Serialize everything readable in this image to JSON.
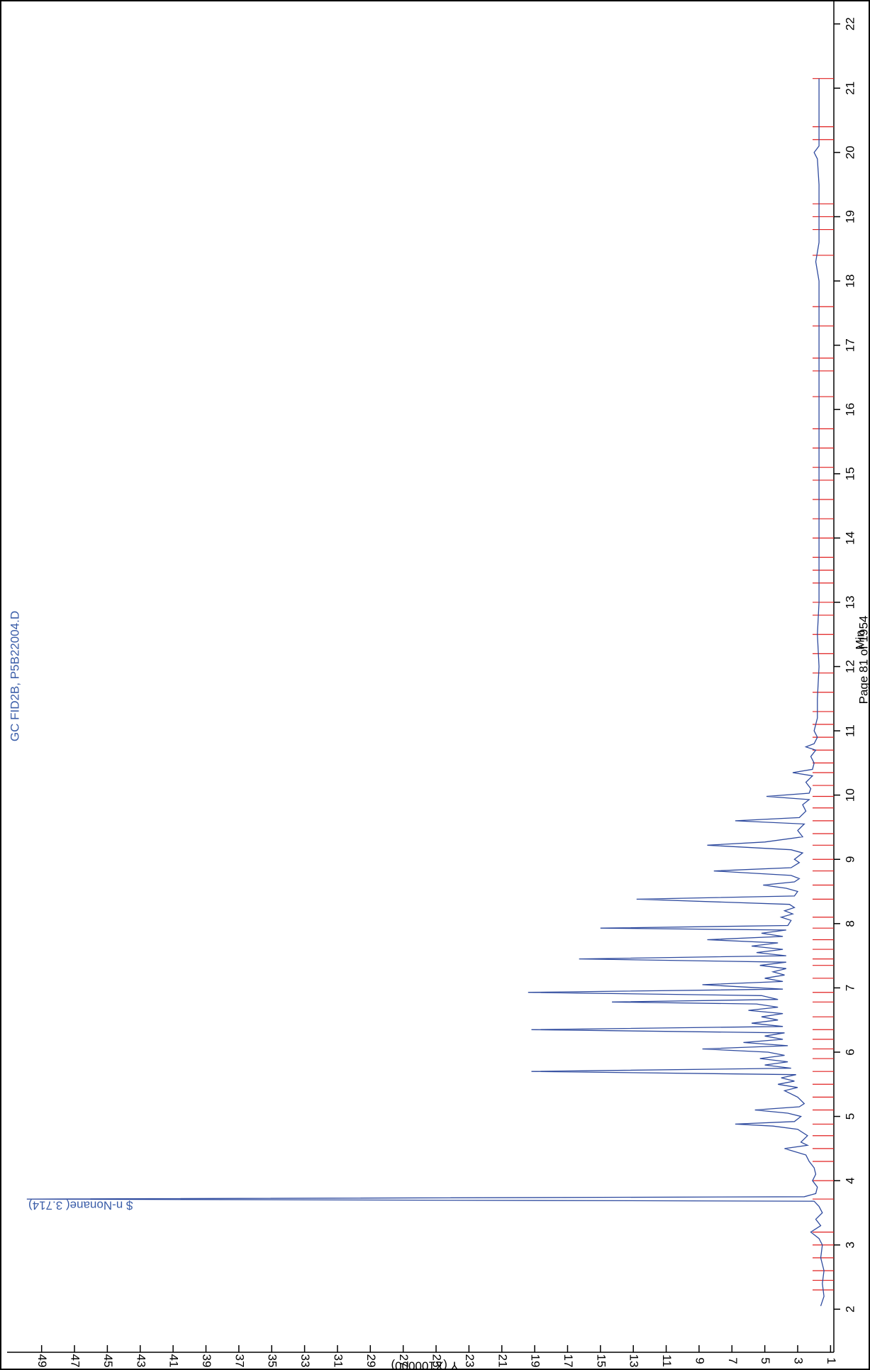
{
  "chart_data": {
    "type": "line",
    "title": "GC FID2B, P5B22004.D",
    "x_label": "Min",
    "y_label": "Y (X100000)",
    "footer": "Page 81 of 1954",
    "annotation": {
      "text": "$ n-Nonane( 3.714)",
      "x": 3.714
    },
    "x": [
      2.05,
      2.2,
      2.4,
      2.6,
      2.8,
      3.0,
      3.1,
      3.2,
      3.3,
      3.4,
      3.5,
      3.6,
      3.68,
      3.714,
      3.75,
      3.8,
      3.9,
      4.0,
      4.1,
      4.2,
      4.3,
      4.4,
      4.5,
      4.55,
      4.6,
      4.7,
      4.8,
      4.85,
      4.88,
      4.92,
      5.0,
      5.05,
      5.1,
      5.15,
      5.2,
      5.3,
      5.4,
      5.45,
      5.5,
      5.55,
      5.6,
      5.65,
      5.7,
      5.75,
      5.8,
      5.85,
      5.9,
      5.95,
      6.0,
      6.05,
      6.1,
      6.15,
      6.2,
      6.25,
      6.3,
      6.35,
      6.4,
      6.45,
      6.5,
      6.55,
      6.6,
      6.65,
      6.7,
      6.75,
      6.78,
      6.82,
      6.88,
      6.93,
      6.98,
      7.05,
      7.1,
      7.15,
      7.2,
      7.25,
      7.3,
      7.35,
      7.4,
      7.45,
      7.5,
      7.55,
      7.6,
      7.65,
      7.7,
      7.75,
      7.8,
      7.85,
      7.9,
      7.93,
      7.97,
      8.05,
      8.1,
      8.15,
      8.2,
      8.25,
      8.3,
      8.38,
      8.43,
      8.5,
      8.55,
      8.6,
      8.65,
      8.7,
      8.75,
      8.82,
      8.87,
      8.95,
      9.0,
      9.1,
      9.15,
      9.22,
      9.27,
      9.35,
      9.45,
      9.55,
      9.6,
      9.65,
      9.75,
      9.85,
      9.93,
      9.98,
      10.03,
      10.1,
      10.2,
      10.3,
      10.35,
      10.4,
      10.5,
      10.6,
      10.7,
      10.75,
      10.8,
      10.9,
      11.0,
      11.2,
      11.5,
      12.0,
      12.5,
      13.0,
      14.0,
      15.0,
      16.0,
      17.0,
      18.0,
      18.3,
      18.6,
      19.0,
      19.5,
      19.9,
      20.0,
      20.1,
      20.5,
      21.0,
      21.15
    ],
    "series": [
      {
        "color": "#2e4a9e",
        "values": [
          1.6,
          1.4,
          1.5,
          1.4,
          1.6,
          1.5,
          1.7,
          2.2,
          1.6,
          1.9,
          1.5,
          1.7,
          2.0,
          49.9,
          2.6,
          1.9,
          1.8,
          2.1,
          1.9,
          2.0,
          2.3,
          2.5,
          3.8,
          2.4,
          2.8,
          2.4,
          3.0,
          4.5,
          6.8,
          3.2,
          2.8,
          3.6,
          5.6,
          2.9,
          2.6,
          3.0,
          3.8,
          3.0,
          4.2,
          3.2,
          4.0,
          3.1,
          19.2,
          3.4,
          5.0,
          3.6,
          5.3,
          3.8,
          4.8,
          8.8,
          3.6,
          6.3,
          3.9,
          5.0,
          3.8,
          19.2,
          3.9,
          5.8,
          4.2,
          5.2,
          3.9,
          6.0,
          4.2,
          5.5,
          14.3,
          4.2,
          5.2,
          19.4,
          3.9,
          8.8,
          3.9,
          5.0,
          3.8,
          4.5,
          3.7,
          5.3,
          3.7,
          16.3,
          3.7,
          5.5,
          3.9,
          5.8,
          4.2,
          8.5,
          3.9,
          5.2,
          3.7,
          15.0,
          3.6,
          3.4,
          4.0,
          3.3,
          3.8,
          3.2,
          3.5,
          12.8,
          3.2,
          3.0,
          3.7,
          5.1,
          3.2,
          2.9,
          3.4,
          8.1,
          3.4,
          2.9,
          3.2,
          2.7,
          3.4,
          8.5,
          5.0,
          2.7,
          3.0,
          2.6,
          6.8,
          2.9,
          2.5,
          2.7,
          2.3,
          4.9,
          2.3,
          2.2,
          2.5,
          2.1,
          3.3,
          2.1,
          2.0,
          2.2,
          1.9,
          2.5,
          2.0,
          1.8,
          2.0,
          1.8,
          1.8,
          1.7,
          1.8,
          1.7,
          1.7,
          1.7,
          1.7,
          1.7,
          1.7,
          1.9,
          1.7,
          1.7,
          1.7,
          1.8,
          2.0,
          1.7,
          1.7,
          1.7,
          1.7
        ]
      }
    ],
    "markers": {
      "color": "#e02020",
      "x": [
        2.3,
        2.45,
        2.6,
        2.8,
        3.0,
        3.2,
        3.714,
        4.0,
        4.3,
        4.5,
        4.7,
        4.88,
        5.1,
        5.3,
        5.5,
        5.7,
        5.9,
        6.05,
        6.2,
        6.35,
        6.55,
        6.78,
        6.93,
        7.15,
        7.35,
        7.45,
        7.6,
        7.75,
        7.93,
        8.1,
        8.38,
        8.6,
        8.82,
        9.0,
        9.22,
        9.4,
        9.6,
        9.8,
        9.98,
        10.15,
        10.35,
        10.5,
        10.7,
        10.9,
        11.1,
        11.3,
        11.6,
        11.9,
        12.2,
        12.5,
        12.8,
        13.0,
        13.3,
        13.5,
        13.7,
        14.0,
        14.3,
        14.6,
        14.9,
        15.1,
        15.4,
        15.7,
        16.2,
        16.6,
        16.8,
        17.3,
        17.6,
        18.4,
        18.8,
        19.0,
        19.2,
        20.2,
        20.4,
        21.15
      ]
    },
    "xlim": [
      1.33,
      22.35
    ],
    "xticks": [
      2,
      3,
      4,
      5,
      6,
      7,
      8,
      9,
      10,
      11,
      12,
      13,
      14,
      15,
      16,
      17,
      18,
      19,
      20,
      21,
      22
    ],
    "ylim": [
      0.8,
      51.1
    ],
    "yticks": [
      1,
      3,
      5,
      7,
      9,
      11,
      13,
      15,
      17,
      19,
      21,
      23,
      25,
      27,
      29,
      31,
      33,
      35,
      37,
      39,
      41,
      43,
      45,
      47,
      49
    ],
    "text_color": "#3a5da8"
  }
}
